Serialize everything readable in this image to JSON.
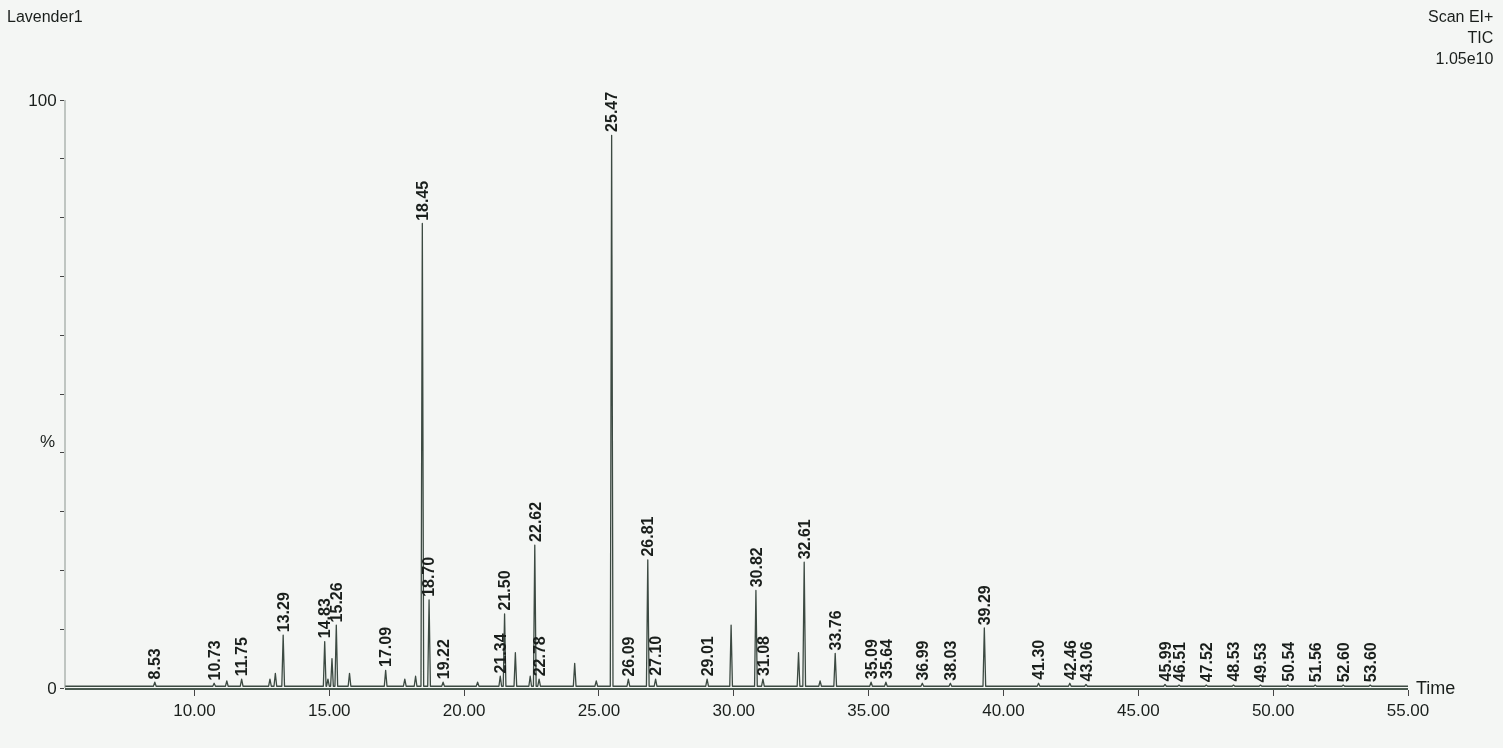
{
  "chart_data": {
    "type": "line",
    "title": "Lavender1",
    "xlabel": "Time",
    "ylabel": "%",
    "xlim": [
      5.2,
      55
    ],
    "ylim": [
      0,
      100
    ],
    "xticks": [
      {
        "value": 10,
        "label": "10.00"
      },
      {
        "value": 15,
        "label": "15.00"
      },
      {
        "value": 20,
        "label": "20.00"
      },
      {
        "value": 25,
        "label": "25.00"
      },
      {
        "value": 30,
        "label": "30.00"
      },
      {
        "value": 35,
        "label": "35.00"
      },
      {
        "value": 40,
        "label": "40.00"
      },
      {
        "value": 45,
        "label": "45.00"
      },
      {
        "value": 50,
        "label": "50.00"
      },
      {
        "value": 55,
        "label": "55.00"
      }
    ],
    "yticks": [
      0,
      {
        "value": 10,
        "label": null
      },
      {
        "value": 20,
        "label": null
      },
      {
        "value": 30,
        "label": null
      },
      {
        "value": 40,
        "label": null
      },
      {
        "value": 50,
        "label": null
      },
      {
        "value": 60,
        "label": null
      },
      {
        "value": 70,
        "label": null
      },
      {
        "value": 80,
        "label": null
      },
      {
        "value": 90,
        "label": null
      },
      100
    ],
    "grid": false,
    "marker": "none",
    "line_style": "solid",
    "series": [
      {
        "color": "#3c4a42",
        "x": [
          5.2,
          8.48,
          8.53,
          8.58,
          10.68,
          10.73,
          10.78,
          11.15,
          11.2,
          11.25,
          11.7,
          11.75,
          11.8,
          12.75,
          12.8,
          12.85,
          12.95,
          13.0,
          13.05,
          13.24,
          13.29,
          13.34,
          14.78,
          14.83,
          14.88,
          14.9,
          14.95,
          15.0,
          15.05,
          15.1,
          15.15,
          15.21,
          15.26,
          15.31,
          15.7,
          15.75,
          15.8,
          17.04,
          17.09,
          17.14,
          17.75,
          17.8,
          17.85,
          18.15,
          18.2,
          18.25,
          18.4,
          18.45,
          18.5,
          18.65,
          18.7,
          18.75,
          19.17,
          19.22,
          19.27,
          20.45,
          20.5,
          20.55,
          21.29,
          21.34,
          21.39,
          21.45,
          21.5,
          21.55,
          21.85,
          21.9,
          21.95,
          22.4,
          22.45,
          22.5,
          22.57,
          22.62,
          22.67,
          22.73,
          22.78,
          22.83,
          24.05,
          24.1,
          24.15,
          24.85,
          24.9,
          24.95,
          25.42,
          25.47,
          25.52,
          26.04,
          26.09,
          26.14,
          26.76,
          26.81,
          26.86,
          27.05,
          27.1,
          27.15,
          28.96,
          29.01,
          29.06,
          29.85,
          29.9,
          29.95,
          30.77,
          30.82,
          30.87,
          31.03,
          31.08,
          31.13,
          32.35,
          32.4,
          32.45,
          32.56,
          32.61,
          32.66,
          33.15,
          33.2,
          33.25,
          33.71,
          33.76,
          33.81,
          35.04,
          35.09,
          35.14,
          35.59,
          35.64,
          35.69,
          36.94,
          36.99,
          37.04,
          37.98,
          38.03,
          38.08,
          39.24,
          39.29,
          39.34,
          41.25,
          41.3,
          41.35,
          42.41,
          42.46,
          42.51,
          43.01,
          43.06,
          43.11,
          45.94,
          45.99,
          46.04,
          46.46,
          46.51,
          46.56,
          47.47,
          47.52,
          47.57,
          48.48,
          48.53,
          48.58,
          49.48,
          49.53,
          49.58,
          50.49,
          50.54,
          50.59,
          51.51,
          51.56,
          51.61,
          52.55,
          52.6,
          52.65,
          53.55,
          53.6,
          53.65,
          55
        ],
        "values": [
          0.3,
          0.3,
          1.0,
          0.3,
          0.3,
          0.8,
          0.3,
          0.3,
          1.2,
          0.3,
          0.3,
          1.5,
          0.3,
          0.3,
          1.5,
          0.3,
          0.3,
          2.5,
          0.3,
          0.3,
          9.0,
          0.3,
          0.3,
          7.9,
          0.3,
          0.3,
          1.5,
          0.3,
          0.3,
          5.0,
          0.3,
          0.3,
          10.7,
          0.3,
          0.3,
          2.5,
          0.3,
          0.3,
          3.0,
          0.3,
          0.3,
          1.5,
          0.3,
          0.3,
          2.0,
          0.3,
          0.3,
          79,
          0.3,
          0.3,
          15,
          0.3,
          0.3,
          1.0,
          0.3,
          0.3,
          1.0,
          0.3,
          0.3,
          2.0,
          0.3,
          0.3,
          12.6,
          0.3,
          0.3,
          6.0,
          0.3,
          0.3,
          2.0,
          0.3,
          0.3,
          24.3,
          0.3,
          0.3,
          1.5,
          0.3,
          0.3,
          4.2,
          0.3,
          0.3,
          1.2,
          0.3,
          0.3,
          94,
          0.3,
          0.3,
          1.5,
          0.3,
          0.3,
          21.8,
          0.3,
          0.3,
          1.5,
          0.3,
          0.3,
          1.5,
          0.3,
          0.3,
          10.7,
          0.3,
          0.3,
          16.6,
          0.3,
          0.3,
          1.5,
          0.3,
          0.3,
          6.0,
          0.3,
          0.3,
          21.4,
          0.3,
          0.3,
          1.2,
          0.3,
          0.3,
          5.9,
          0.3,
          0.3,
          1.0,
          0.3,
          0.3,
          1.0,
          0.3,
          0.3,
          0.8,
          0.3,
          0.3,
          0.8,
          0.3,
          0.3,
          10.2,
          0.3,
          0.3,
          0.8,
          0.3,
          0.3,
          0.8,
          0.3,
          0.3,
          0.6,
          0.3,
          0.3,
          0.6,
          0.3,
          0.3,
          0.5,
          0.3,
          0.3,
          0.5,
          0.3,
          0.3,
          0.5,
          0.3,
          0.3,
          0.5,
          0.3,
          0.3,
          0.5,
          0.3,
          0.3,
          0.5,
          0.3,
          0.3,
          0.5,
          0.3,
          0.3,
          0.5,
          0.3,
          0.3
        ]
      }
    ],
    "annotations": [
      "Scan EI+\nTIC\n1.05e10",
      {
        "text": "8.53",
        "x": 8.53,
        "y": 1.0
      },
      {
        "text": "10.73",
        "x": 10.73,
        "y": 0.8
      },
      {
        "text": "11.75",
        "x": 11.75,
        "y": 1.5
      },
      {
        "text": "13.29",
        "x": 13.29,
        "y": 9.0
      },
      {
        "text": "14.83",
        "x": 14.83,
        "y": 7.9
      },
      {
        "text": "15.26",
        "x": 15.26,
        "y": 10.7
      },
      {
        "text": "17.09",
        "x": 17.09,
        "y": 3.0
      },
      {
        "text": "18.45",
        "x": 18.45,
        "y": 79
      },
      {
        "text": "18.70",
        "x": 18.7,
        "y": 15
      },
      {
        "text": "19.22",
        "x": 19.22,
        "y": 1.0
      },
      {
        "text": "21.34",
        "x": 21.34,
        "y": 2.0
      },
      {
        "text": "21.50",
        "x": 21.5,
        "y": 12.6
      },
      {
        "text": "22.62",
        "x": 22.62,
        "y": 24.3
      },
      {
        "text": "22.78",
        "x": 22.78,
        "y": 1.5
      },
      {
        "text": "25.47",
        "x": 25.47,
        "y": 94
      },
      {
        "text": "26.09",
        "x": 26.09,
        "y": 1.5
      },
      {
        "text": "26.81",
        "x": 26.81,
        "y": 21.8
      },
      {
        "text": "27.10",
        "x": 27.1,
        "y": 1.5
      },
      {
        "text": "29.01",
        "x": 29.01,
        "y": 1.5
      },
      {
        "text": "30.82",
        "x": 30.82,
        "y": 16.6
      },
      {
        "text": "31.08",
        "x": 31.08,
        "y": 1.5
      },
      {
        "text": "32.61",
        "x": 32.61,
        "y": 21.4
      },
      {
        "text": "33.76",
        "x": 33.76,
        "y": 5.9
      },
      {
        "text": "35.09",
        "x": 35.09,
        "y": 1.0
      },
      {
        "text": "35.64",
        "x": 35.64,
        "y": 1.0
      },
      {
        "text": "36.99",
        "x": 36.99,
        "y": 0.8
      },
      {
        "text": "38.03",
        "x": 38.03,
        "y": 0.8
      },
      {
        "text": "39.29",
        "x": 39.29,
        "y": 10.2
      },
      {
        "text": "41.30",
        "x": 41.3,
        "y": 0.8
      },
      {
        "text": "42.46",
        "x": 42.46,
        "y": 0.8
      },
      {
        "text": "43.06",
        "x": 43.06,
        "y": 0.6
      },
      {
        "text": "45.99",
        "x": 45.99,
        "y": 0.6
      },
      {
        "text": "46.51",
        "x": 46.51,
        "y": 0.5
      },
      {
        "text": "47.52",
        "x": 47.52,
        "y": 0.5
      },
      {
        "text": "48.53",
        "x": 48.53,
        "y": 0.5
      },
      {
        "text": "49.53",
        "x": 49.53,
        "y": 0.5
      },
      {
        "text": "50.54",
        "x": 50.54,
        "y": 0.5
      },
      {
        "text": "51.56",
        "x": 51.56,
        "y": 0.5
      },
      {
        "text": "52.60",
        "x": 52.6,
        "y": 0.5
      },
      {
        "text": "53.60",
        "x": 53.6,
        "y": 0.5
      }
    ]
  }
}
